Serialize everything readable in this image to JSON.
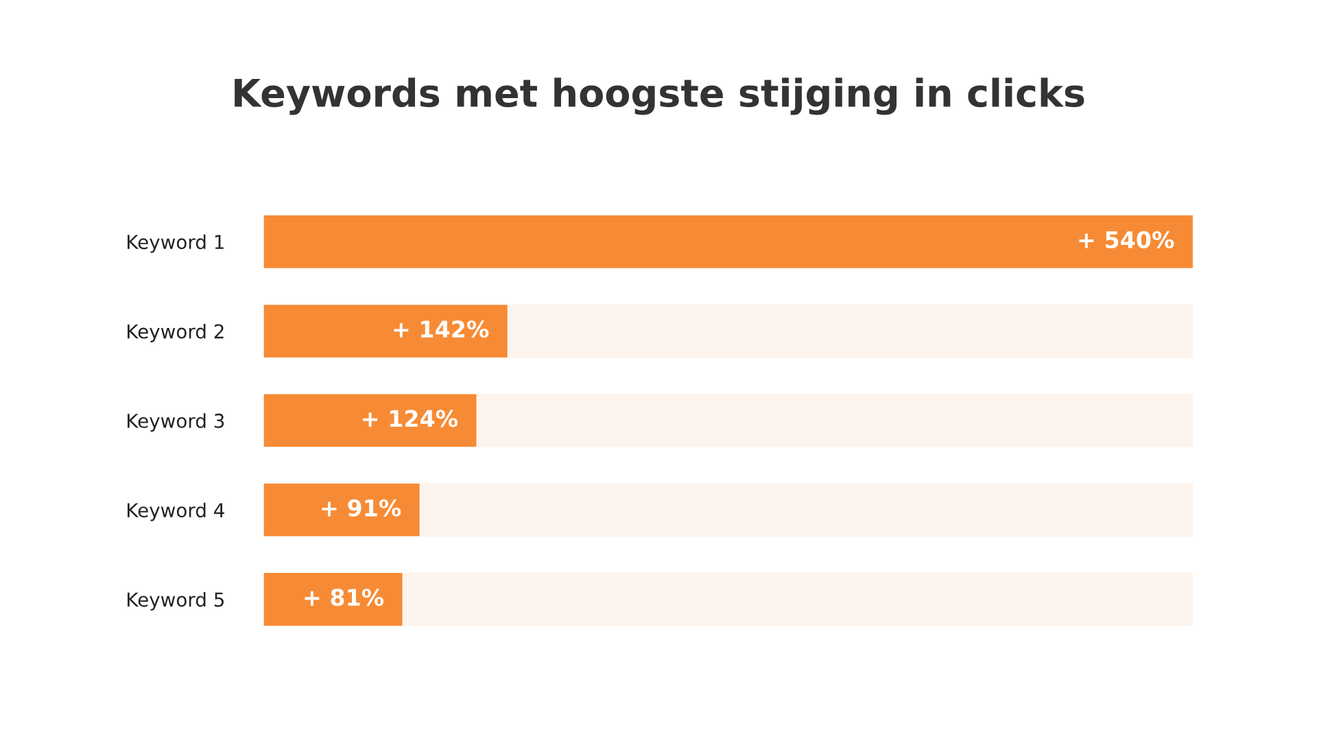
{
  "chart_data": {
    "type": "bar",
    "orientation": "horizontal",
    "title": "Keywords met hoogste stijging in clicks",
    "categories": [
      "Keyword 1",
      "Keyword 2",
      "Keyword 3",
      "Keyword 4",
      "Keyword 5"
    ],
    "values": [
      540,
      142,
      124,
      91,
      81
    ],
    "value_labels": [
      "+ 540%",
      "+ 142%",
      "+ 124%",
      "+ 91%",
      "+ 81%"
    ],
    "color": "#f78b35",
    "grid": false,
    "legend": false
  }
}
